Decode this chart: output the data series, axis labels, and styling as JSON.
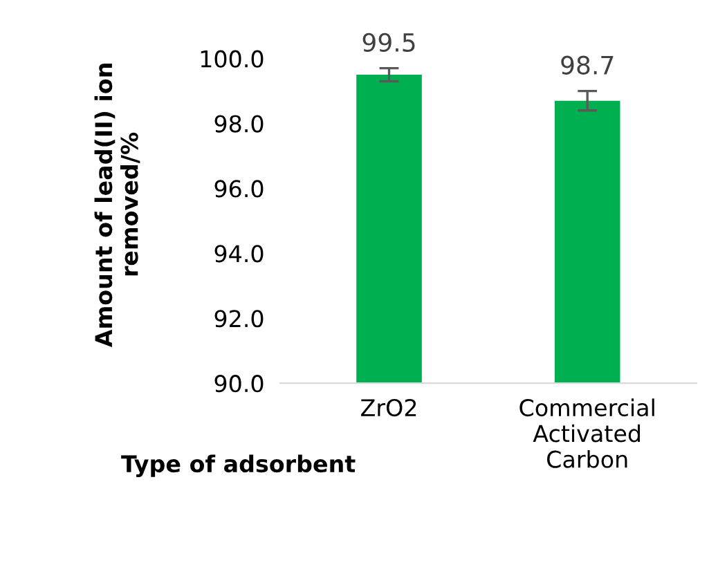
{
  "chart_data": {
    "type": "bar",
    "xlabel": "Type of adsorbent",
    "ylabel": "Amount of lead(II) ion removed/%",
    "categories": [
      "ZrO2",
      "Commercial Activated Carbon"
    ],
    "values": [
      99.5,
      98.7
    ],
    "errors": [
      0.2,
      0.3
    ],
    "color": "#00b050",
    "ylim": [
      90,
      100
    ],
    "yticks": [
      {
        "value": 90,
        "label": "90.0"
      },
      {
        "value": 92,
        "label": "92.0"
      },
      {
        "value": 94,
        "label": "94.0"
      },
      {
        "value": 96,
        "label": "96.0"
      },
      {
        "value": 98,
        "label": "98.0"
      },
      {
        "value": 100,
        "label": "100.0"
      }
    ],
    "data_labels": true,
    "grid": false,
    "legend": false
  }
}
